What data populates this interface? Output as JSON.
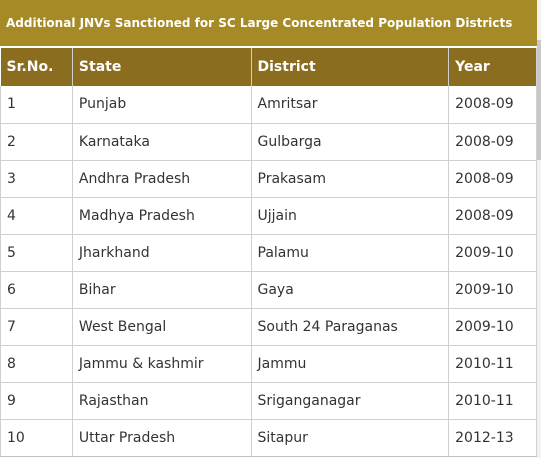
{
  "title": "Additional JNVs Sanctioned for SC Large Concentrated Population Districts",
  "columns": [
    "Sr.No.",
    "State",
    "District",
    "Year"
  ],
  "rows": [
    [
      "1",
      "Punjab",
      "Amritsar",
      "2008-09"
    ],
    [
      "2",
      "Karnataka",
      "Gulbarga",
      "2008-09"
    ],
    [
      "3",
      "Andhra Pradesh",
      "Prakasam",
      "2008-09"
    ],
    [
      "4",
      "Madhya Pradesh",
      "Ujjain",
      "2008-09"
    ],
    [
      "5",
      "Jharkhand",
      "Palamu",
      "2009-10"
    ],
    [
      "6",
      "Bihar",
      "Gaya",
      "2009-10"
    ],
    [
      "7",
      "West Bengal",
      "South 24 Paraganas",
      "2009-10"
    ],
    [
      "8",
      "Jammu & kashmir",
      "Jammu",
      "2010-11"
    ],
    [
      "9",
      "Rajasthan",
      "Sriganganagar",
      "2010-11"
    ],
    [
      "10",
      "Uttar Pradesh",
      "Sitapur",
      "2012-13"
    ]
  ]
}
